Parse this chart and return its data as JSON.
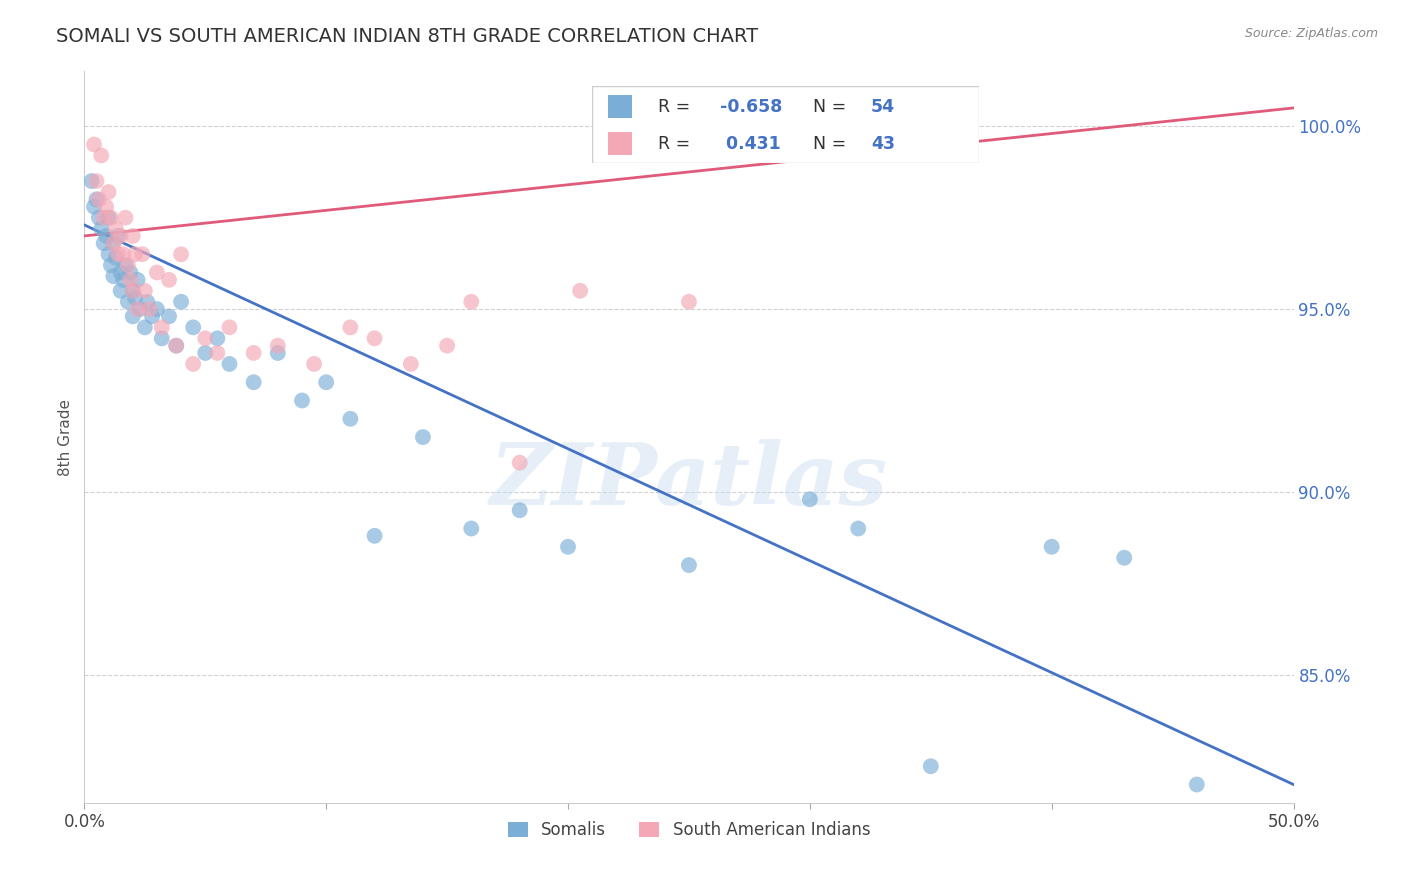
{
  "title": "SOMALI VS SOUTH AMERICAN INDIAN 8TH GRADE CORRELATION CHART",
  "source": "Source: ZipAtlas.com",
  "ylabel": "8th Grade",
  "xlim": [
    0.0,
    50.0
  ],
  "ylim": [
    81.5,
    101.5
  ],
  "x_ticks": [
    0.0,
    10.0,
    20.0,
    30.0,
    40.0,
    50.0
  ],
  "x_tick_labels": [
    "0.0%",
    "",
    "",
    "",
    "",
    "50.0%"
  ],
  "y_ticks": [
    85.0,
    90.0,
    95.0,
    100.0
  ],
  "y_tick_labels": [
    "85.0%",
    "90.0%",
    "95.0%",
    "100.0%"
  ],
  "legend_labels": [
    "Somalis",
    "South American Indians"
  ],
  "somali_R": "-0.658",
  "somali_N": "54",
  "sai_R": "0.431",
  "sai_N": "43",
  "blue_color": "#7aaed6",
  "pink_color": "#f4a7b5",
  "blue_line_color": "#4472c4",
  "pink_line_color": "#e05a7a",
  "watermark": "ZIPatlas",
  "blue_line_x0": 0.0,
  "blue_line_y0": 97.3,
  "blue_line_x1": 50.0,
  "blue_line_y1": 82.0,
  "pink_line_x0": 0.0,
  "pink_line_y0": 97.0,
  "pink_line_x1": 50.0,
  "pink_line_y1": 100.5,
  "somali_x": [
    0.3,
    0.4,
    0.5,
    0.6,
    0.7,
    0.8,
    0.9,
    1.0,
    1.0,
    1.1,
    1.2,
    1.2,
    1.3,
    1.4,
    1.5,
    1.5,
    1.6,
    1.7,
    1.8,
    1.9,
    2.0,
    2.0,
    2.1,
    2.2,
    2.3,
    2.5,
    2.6,
    2.8,
    3.0,
    3.2,
    3.5,
    3.8,
    4.0,
    4.5,
    5.0,
    5.5,
    6.0,
    7.0,
    8.0,
    9.0,
    10.0,
    11.0,
    12.0,
    14.0,
    16.0,
    18.0,
    20.0,
    25.0,
    30.0,
    32.0,
    35.0,
    40.0,
    43.0,
    46.0
  ],
  "somali_y": [
    98.5,
    97.8,
    98.0,
    97.5,
    97.2,
    96.8,
    97.0,
    97.5,
    96.5,
    96.2,
    96.8,
    95.9,
    96.4,
    97.0,
    96.0,
    95.5,
    95.8,
    96.2,
    95.2,
    96.0,
    95.5,
    94.8,
    95.3,
    95.8,
    95.0,
    94.5,
    95.2,
    94.8,
    95.0,
    94.2,
    94.8,
    94.0,
    95.2,
    94.5,
    93.8,
    94.2,
    93.5,
    93.0,
    93.8,
    92.5,
    93.0,
    92.0,
    88.8,
    91.5,
    89.0,
    89.5,
    88.5,
    88.0,
    89.8,
    89.0,
    82.5,
    88.5,
    88.2,
    82.0
  ],
  "sai_x": [
    0.4,
    0.5,
    0.6,
    0.7,
    0.8,
    0.9,
    1.0,
    1.1,
    1.2,
    1.3,
    1.4,
    1.5,
    1.6,
    1.7,
    1.8,
    1.9,
    2.0,
    2.0,
    2.1,
    2.2,
    2.4,
    2.5,
    2.7,
    3.0,
    3.2,
    3.5,
    3.8,
    4.0,
    4.5,
    5.0,
    5.5,
    6.0,
    7.0,
    8.0,
    9.5,
    11.0,
    12.0,
    13.5,
    15.0,
    16.0,
    18.0,
    20.5,
    25.0
  ],
  "sai_y": [
    99.5,
    98.5,
    98.0,
    99.2,
    97.5,
    97.8,
    98.2,
    97.5,
    96.8,
    97.2,
    96.5,
    97.0,
    96.5,
    97.5,
    96.2,
    95.8,
    97.0,
    95.5,
    96.5,
    95.0,
    96.5,
    95.5,
    95.0,
    96.0,
    94.5,
    95.8,
    94.0,
    96.5,
    93.5,
    94.2,
    93.8,
    94.5,
    93.8,
    94.0,
    93.5,
    94.5,
    94.2,
    93.5,
    94.0,
    95.2,
    90.8,
    95.5,
    95.2
  ]
}
